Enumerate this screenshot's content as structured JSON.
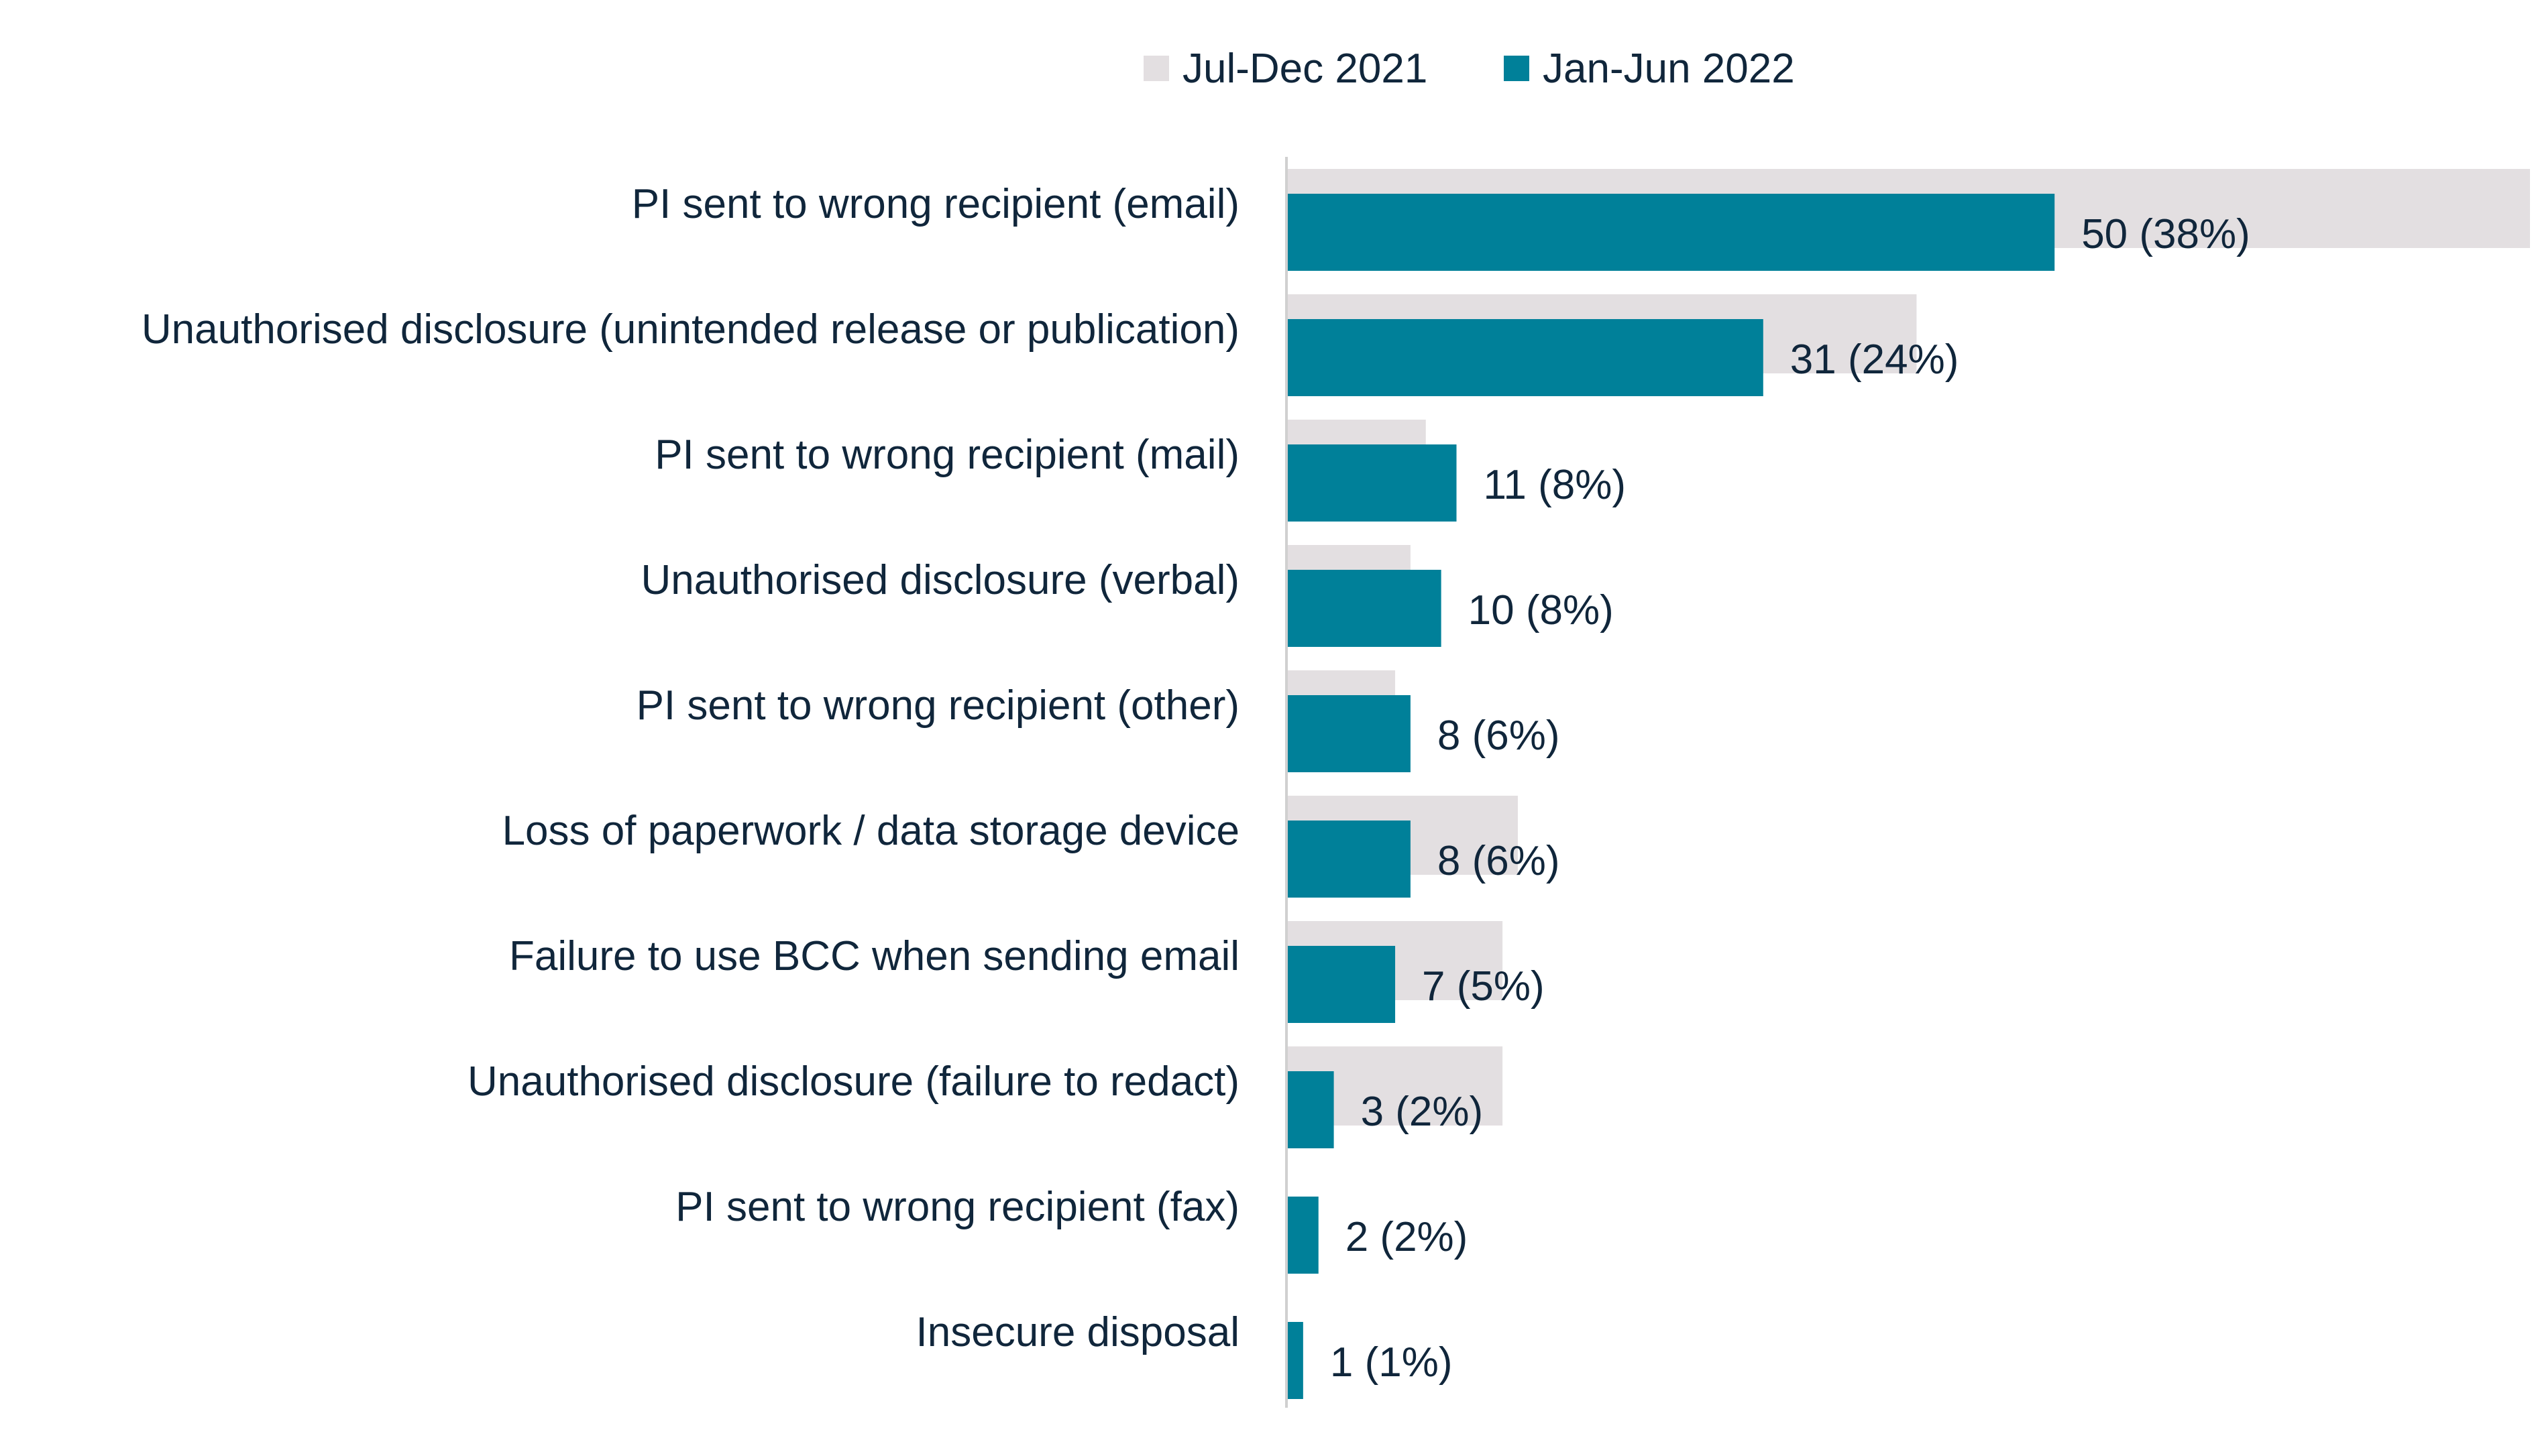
{
  "colors": {
    "prev_series": "#e3dfe1",
    "curr_series": "#008099",
    "text": "#10263b",
    "axis": "#d0d0d0"
  },
  "chart_data": {
    "type": "bar",
    "orientation": "horizontal",
    "title": "",
    "xlabel": "",
    "ylabel": "",
    "legend_position": "top",
    "grid": false,
    "xlim": [
      0,
      81
    ],
    "categories": [
      "PI sent to wrong recipient (email)",
      "Unauthorised disclosure (unintended release or publication)",
      "PI sent to wrong recipient (mail)",
      "Unauthorised disclosure (verbal)",
      "PI sent to wrong recipient (other)",
      "Loss of paperwork / data storage device",
      "Failure to use BCC when sending email",
      "Unauthorised disclosure (failure to redact)",
      "PI sent to wrong recipient (fax)",
      "Insecure disposal"
    ],
    "series": [
      {
        "name": "Jul-Dec 2021",
        "values": [
          81,
          41,
          9,
          8,
          7,
          15,
          14,
          14,
          0,
          0
        ]
      },
      {
        "name": "Jan-Jun 2022",
        "values": [
          50,
          31,
          11,
          10,
          8,
          8,
          7,
          3,
          2,
          1
        ],
        "data_labels": [
          "50 (38%)",
          "31 (24%)",
          "11 (8%)",
          "10 (8%)",
          "8 (6%)",
          "8 (6%)",
          "7 (5%)",
          "3 (2%)",
          "2 (2%)",
          "1 (1%)"
        ]
      }
    ]
  }
}
